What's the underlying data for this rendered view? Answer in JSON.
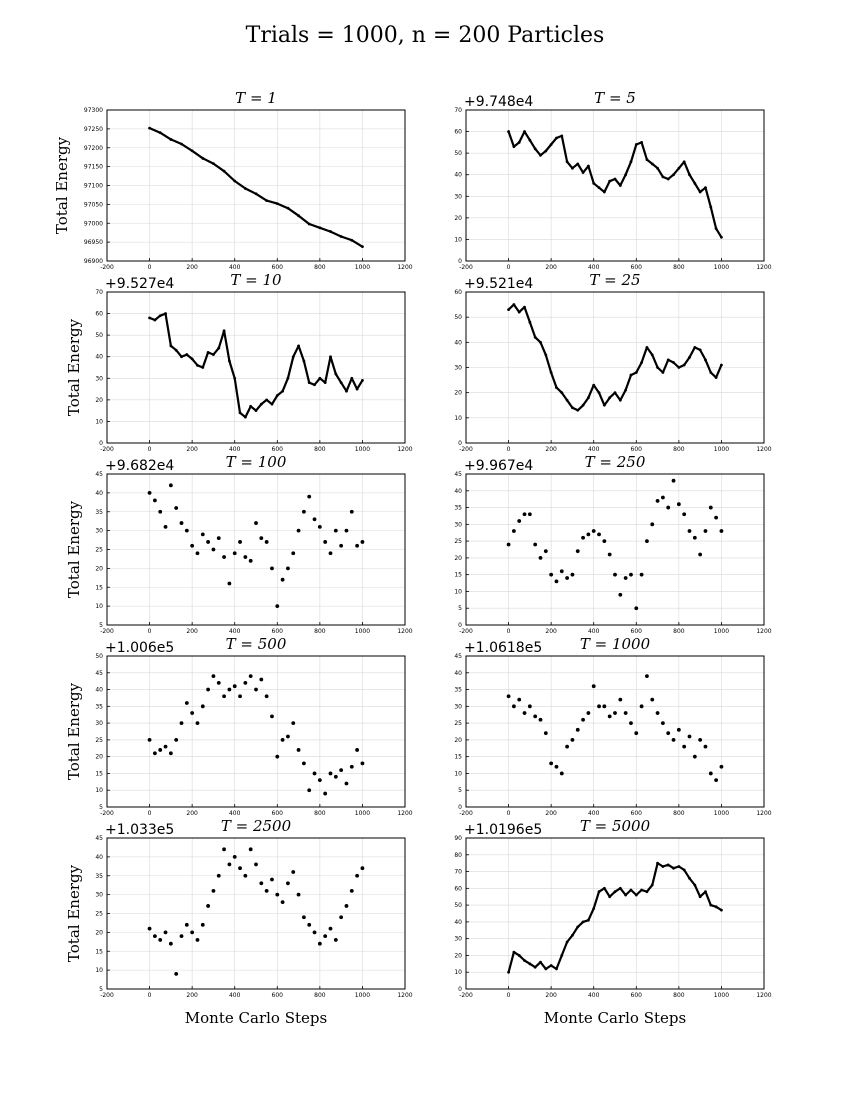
{
  "figure": {
    "suptitle": "Trials = 1000, n = 200 Particles"
  },
  "chart_data": [
    {
      "type": "line",
      "style": "line",
      "title": "T = 1",
      "offset_text": "",
      "ylabel": "Total Energy",
      "xlabel": "",
      "xlim": [
        -200,
        1200
      ],
      "ylim": [
        96900,
        97300
      ],
      "xticks": [
        -200,
        0,
        200,
        400,
        600,
        800,
        1000,
        1200
      ],
      "yticks": [
        96900,
        96950,
        97000,
        97050,
        97100,
        97150,
        97200,
        97250,
        97300
      ],
      "grid": true,
      "x": [
        0,
        50,
        100,
        150,
        200,
        250,
        300,
        350,
        400,
        450,
        500,
        550,
        600,
        650,
        700,
        750,
        800,
        850,
        900,
        950,
        1000
      ],
      "series": [
        {
          "values": [
            97252,
            97240,
            97222,
            97210,
            97192,
            97172,
            97158,
            97138,
            97112,
            97092,
            97078,
            97060,
            97052,
            97040,
            97020,
            96998,
            96988,
            96978,
            96965,
            96955,
            96938
          ]
        }
      ]
    },
    {
      "type": "line",
      "style": "line",
      "title": "T = 5",
      "offset_text": "+9.748e4",
      "ylabel": "",
      "xlabel": "",
      "xlim": [
        -200,
        1200
      ],
      "ylim": [
        0,
        70
      ],
      "xticks": [
        -200,
        0,
        200,
        400,
        600,
        800,
        1000,
        1200
      ],
      "yticks": [
        0,
        10,
        20,
        30,
        40,
        50,
        60,
        70
      ],
      "grid": true,
      "x": [
        0,
        25,
        50,
        75,
        100,
        125,
        150,
        175,
        200,
        225,
        250,
        275,
        300,
        325,
        350,
        375,
        400,
        425,
        450,
        475,
        500,
        525,
        550,
        575,
        600,
        625,
        650,
        675,
        700,
        725,
        750,
        775,
        800,
        825,
        850,
        875,
        900,
        925,
        950,
        975,
        1000
      ],
      "series": [
        {
          "values": [
            60,
            53,
            55,
            60,
            56,
            52,
            49,
            51,
            54,
            57,
            58,
            46,
            43,
            45,
            41,
            44,
            36,
            34,
            32,
            37,
            38,
            35,
            40,
            46,
            54,
            55,
            47,
            45,
            43,
            39,
            38,
            40,
            43,
            46,
            40,
            36,
            32,
            34,
            25,
            15,
            11
          ]
        }
      ]
    },
    {
      "type": "line",
      "style": "line",
      "title": "T = 10",
      "offset_text": "+9.527e4",
      "ylabel": "Total Energy",
      "xlabel": "",
      "xlim": [
        -200,
        1200
      ],
      "ylim": [
        0,
        70
      ],
      "xticks": [
        -200,
        0,
        200,
        400,
        600,
        800,
        1000,
        1200
      ],
      "yticks": [
        0,
        10,
        20,
        30,
        40,
        50,
        60,
        70
      ],
      "grid": true,
      "x": [
        0,
        25,
        50,
        75,
        100,
        125,
        150,
        175,
        200,
        225,
        250,
        275,
        300,
        325,
        350,
        375,
        400,
        425,
        450,
        475,
        500,
        525,
        550,
        575,
        600,
        625,
        650,
        675,
        700,
        725,
        750,
        775,
        800,
        825,
        850,
        875,
        900,
        925,
        950,
        975,
        1000
      ],
      "series": [
        {
          "values": [
            58,
            57,
            59,
            60,
            45,
            43,
            40,
            41,
            39,
            36,
            35,
            42,
            41,
            44,
            52,
            38,
            30,
            14,
            12,
            17,
            15,
            18,
            20,
            18,
            22,
            24,
            30,
            40,
            45,
            38,
            28,
            27,
            30,
            28,
            40,
            32,
            28,
            24,
            30,
            25,
            29
          ]
        }
      ]
    },
    {
      "type": "line",
      "style": "line",
      "title": "T = 25",
      "offset_text": "+9.521e4",
      "ylabel": "",
      "xlabel": "",
      "xlim": [
        -200,
        1200
      ],
      "ylim": [
        0,
        60
      ],
      "xticks": [
        -200,
        0,
        200,
        400,
        600,
        800,
        1000,
        1200
      ],
      "yticks": [
        0,
        10,
        20,
        30,
        40,
        50,
        60
      ],
      "grid": true,
      "x": [
        0,
        25,
        50,
        75,
        100,
        125,
        150,
        175,
        200,
        225,
        250,
        275,
        300,
        325,
        350,
        375,
        400,
        425,
        450,
        475,
        500,
        525,
        550,
        575,
        600,
        625,
        650,
        675,
        700,
        725,
        750,
        775,
        800,
        825,
        850,
        875,
        900,
        925,
        950,
        975,
        1000
      ],
      "series": [
        {
          "values": [
            53,
            55,
            52,
            54,
            48,
            42,
            40,
            35,
            28,
            22,
            20,
            17,
            14,
            13,
            15,
            18,
            23,
            20,
            15,
            18,
            20,
            17,
            21,
            27,
            28,
            32,
            38,
            35,
            30,
            28,
            33,
            32,
            30,
            31,
            34,
            38,
            37,
            33,
            28,
            26,
            31
          ]
        }
      ]
    },
    {
      "type": "scatter",
      "style": "dots",
      "title": "T = 100",
      "offset_text": "+9.682e4",
      "ylabel": "Total Energy",
      "xlabel": "",
      "xlim": [
        -200,
        1200
      ],
      "ylim": [
        5,
        45
      ],
      "xticks": [
        -200,
        0,
        200,
        400,
        600,
        800,
        1000,
        1200
      ],
      "yticks": [
        5,
        10,
        15,
        20,
        25,
        30,
        35,
        40,
        45
      ],
      "grid": true,
      "x": [
        0,
        25,
        50,
        75,
        100,
        125,
        150,
        175,
        200,
        225,
        250,
        275,
        300,
        325,
        350,
        375,
        400,
        425,
        450,
        475,
        500,
        525,
        550,
        575,
        600,
        625,
        650,
        675,
        700,
        725,
        750,
        775,
        800,
        825,
        850,
        875,
        900,
        925,
        950,
        975,
        1000
      ],
      "series": [
        {
          "values": [
            40,
            38,
            35,
            31,
            42,
            36,
            32,
            30,
            26,
            24,
            29,
            27,
            25,
            28,
            23,
            16,
            24,
            27,
            23,
            22,
            32,
            28,
            27,
            20,
            10,
            17,
            20,
            24,
            30,
            35,
            39,
            33,
            31,
            27,
            24,
            30,
            26,
            30,
            35,
            26,
            27
          ]
        }
      ]
    },
    {
      "type": "scatter",
      "style": "dots",
      "title": "T = 250",
      "offset_text": "+9.967e4",
      "ylabel": "",
      "xlabel": "",
      "xlim": [
        -200,
        1200
      ],
      "ylim": [
        0,
        45
      ],
      "xticks": [
        -200,
        0,
        200,
        400,
        600,
        800,
        1000,
        1200
      ],
      "yticks": [
        0,
        5,
        10,
        15,
        20,
        25,
        30,
        35,
        40,
        45
      ],
      "grid": true,
      "x": [
        0,
        25,
        50,
        75,
        100,
        125,
        150,
        175,
        200,
        225,
        250,
        275,
        300,
        325,
        350,
        375,
        400,
        425,
        450,
        475,
        500,
        525,
        550,
        575,
        600,
        625,
        650,
        675,
        700,
        725,
        750,
        775,
        800,
        825,
        850,
        875,
        900,
        925,
        950,
        975,
        1000
      ],
      "series": [
        {
          "values": [
            24,
            28,
            31,
            33,
            33,
            24,
            20,
            22,
            15,
            13,
            16,
            14,
            15,
            22,
            26,
            27,
            28,
            27,
            25,
            21,
            15,
            9,
            14,
            15,
            5,
            15,
            25,
            30,
            37,
            38,
            35,
            43,
            36,
            33,
            28,
            26,
            21,
            28,
            35,
            32,
            28
          ]
        }
      ]
    },
    {
      "type": "scatter",
      "style": "dots",
      "title": "T = 500",
      "offset_text": "+1.006e5",
      "ylabel": "Total Energy",
      "xlabel": "",
      "xlim": [
        -200,
        1200
      ],
      "ylim": [
        5,
        50
      ],
      "xticks": [
        -200,
        0,
        200,
        400,
        600,
        800,
        1000,
        1200
      ],
      "yticks": [
        5,
        10,
        15,
        20,
        25,
        30,
        35,
        40,
        45,
        50
      ],
      "grid": true,
      "x": [
        0,
        25,
        50,
        75,
        100,
        125,
        150,
        175,
        200,
        225,
        250,
        275,
        300,
        325,
        350,
        375,
        400,
        425,
        450,
        475,
        500,
        525,
        550,
        575,
        600,
        625,
        650,
        675,
        700,
        725,
        750,
        775,
        800,
        825,
        850,
        875,
        900,
        925,
        950,
        975,
        1000
      ],
      "series": [
        {
          "values": [
            25,
            21,
            22,
            23,
            21,
            25,
            30,
            36,
            33,
            30,
            35,
            40,
            44,
            42,
            38,
            40,
            41,
            38,
            42,
            44,
            40,
            43,
            38,
            32,
            20,
            25,
            26,
            30,
            22,
            18,
            10,
            15,
            13,
            9,
            15,
            14,
            16,
            12,
            17,
            22,
            18
          ]
        }
      ]
    },
    {
      "type": "scatter",
      "style": "dots",
      "title": "T = 1000",
      "offset_text": "+1.0618e5",
      "ylabel": "",
      "xlabel": "",
      "xlim": [
        -200,
        1200
      ],
      "ylim": [
        0,
        45
      ],
      "xticks": [
        -200,
        0,
        200,
        400,
        600,
        800,
        1000,
        1200
      ],
      "yticks": [
        0,
        5,
        10,
        15,
        20,
        25,
        30,
        35,
        40,
        45
      ],
      "grid": true,
      "x": [
        0,
        25,
        50,
        75,
        100,
        125,
        150,
        175,
        200,
        225,
        250,
        275,
        300,
        325,
        350,
        375,
        400,
        425,
        450,
        475,
        500,
        525,
        550,
        575,
        600,
        625,
        650,
        675,
        700,
        725,
        750,
        775,
        800,
        825,
        850,
        875,
        900,
        925,
        950,
        975,
        1000
      ],
      "series": [
        {
          "values": [
            33,
            30,
            32,
            28,
            30,
            27,
            26,
            22,
            13,
            12,
            10,
            18,
            20,
            23,
            26,
            28,
            36,
            30,
            30,
            27,
            28,
            32,
            28,
            25,
            22,
            30,
            39,
            32,
            28,
            25,
            22,
            20,
            23,
            18,
            21,
            15,
            20,
            18,
            10,
            8,
            12
          ]
        }
      ]
    },
    {
      "type": "scatter",
      "style": "dots",
      "title": "T = 2500",
      "offset_text": "+1.033e5",
      "ylabel": "Total Energy",
      "xlabel": "Monte Carlo Steps",
      "xlim": [
        -200,
        1200
      ],
      "ylim": [
        5,
        45
      ],
      "xticks": [
        -200,
        0,
        200,
        400,
        600,
        800,
        1000,
        1200
      ],
      "yticks": [
        5,
        10,
        15,
        20,
        25,
        30,
        35,
        40,
        45
      ],
      "grid": true,
      "x": [
        0,
        25,
        50,
        75,
        100,
        125,
        150,
        175,
        200,
        225,
        250,
        275,
        300,
        325,
        350,
        375,
        400,
        425,
        450,
        475,
        500,
        525,
        550,
        575,
        600,
        625,
        650,
        675,
        700,
        725,
        750,
        775,
        800,
        825,
        850,
        875,
        900,
        925,
        950,
        975,
        1000
      ],
      "series": [
        {
          "values": [
            21,
            19,
            18,
            20,
            17,
            9,
            19,
            22,
            20,
            18,
            22,
            27,
            31,
            35,
            42,
            38,
            40,
            37,
            35,
            42,
            38,
            33,
            31,
            34,
            30,
            28,
            33,
            36,
            30,
            24,
            22,
            20,
            17,
            19,
            21,
            18,
            24,
            27,
            31,
            35,
            37
          ]
        }
      ]
    },
    {
      "type": "line",
      "style": "line",
      "title": "T = 5000",
      "offset_text": "+1.0196e5",
      "ylabel": "",
      "xlabel": "Monte Carlo Steps",
      "xlim": [
        -200,
        1200
      ],
      "ylim": [
        0,
        90
      ],
      "xticks": [
        -200,
        0,
        200,
        400,
        600,
        800,
        1000,
        1200
      ],
      "yticks": [
        0,
        10,
        20,
        30,
        40,
        50,
        60,
        70,
        80,
        90
      ],
      "grid": true,
      "x": [
        0,
        25,
        50,
        75,
        100,
        125,
        150,
        175,
        200,
        225,
        250,
        275,
        300,
        325,
        350,
        375,
        400,
        425,
        450,
        475,
        500,
        525,
        550,
        575,
        600,
        625,
        650,
        675,
        700,
        725,
        750,
        775,
        800,
        825,
        850,
        875,
        900,
        925,
        950,
        975,
        1000
      ],
      "series": [
        {
          "values": [
            10,
            22,
            20,
            17,
            15,
            13,
            16,
            12,
            14,
            12,
            20,
            28,
            32,
            37,
            40,
            41,
            48,
            58,
            60,
            55,
            58,
            60,
            56,
            59,
            56,
            59,
            58,
            62,
            75,
            73,
            74,
            72,
            73,
            71,
            66,
            62,
            55,
            58,
            50,
            49,
            47
          ]
        }
      ]
    }
  ]
}
